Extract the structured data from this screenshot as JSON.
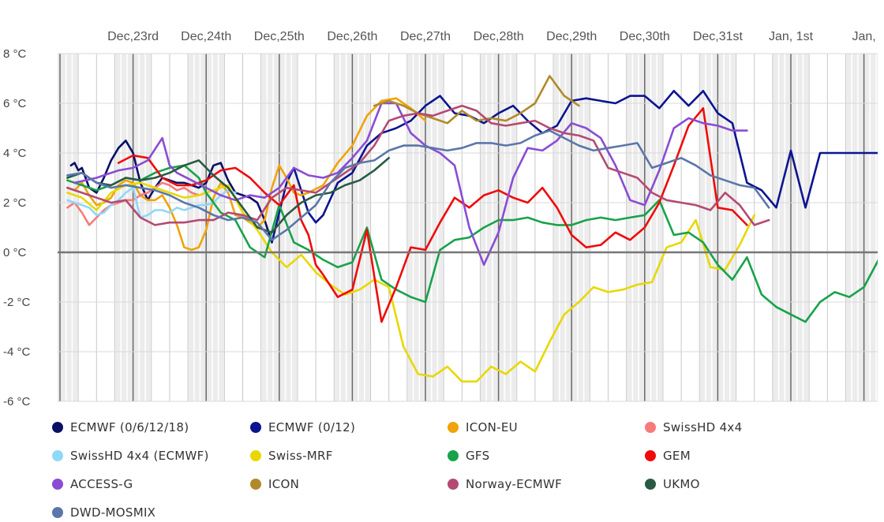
{
  "chart_data": {
    "type": "line",
    "title": "",
    "xlabel": "",
    "ylabel": "",
    "ylim": [
      -6,
      8
    ],
    "y_ticks": [
      -6,
      -4,
      -2,
      0,
      2,
      4,
      6,
      8
    ],
    "y_unit": "°C",
    "x_unit": "days from Dec 22 00:00",
    "xlim": [
      0,
      11.2
    ],
    "date_labels": [
      {
        "label": "Dec,23rd",
        "x": 1
      },
      {
        "label": "Dec,24th",
        "x": 2
      },
      {
        "label": "Dec,25th",
        "x": 3
      },
      {
        "label": "Dec,26th",
        "x": 4
      },
      {
        "label": "Dec,27th",
        "x": 5
      },
      {
        "label": "Dec,28th",
        "x": 6
      },
      {
        "label": "Dec,29th",
        "x": 7
      },
      {
        "label": "Dec,30th",
        "x": 8
      },
      {
        "label": "Dec,31st",
        "x": 9
      },
      {
        "label": "Jan, 1st",
        "x": 10
      },
      {
        "label": "Jan,",
        "x": 11
      }
    ],
    "grid": true,
    "legend_position": "bottom",
    "series": [
      {
        "name": "ECMWF (0/6/12/18)",
        "color": "#0a0f66",
        "x": [
          0.15,
          0.2,
          0.25,
          0.3,
          0.35,
          0.4,
          0.5,
          0.6,
          0.7,
          0.8,
          0.9,
          1.0,
          1.1,
          1.2,
          1.3,
          1.4,
          1.5,
          1.6,
          1.7,
          1.8,
          1.9,
          2.0,
          2.1,
          2.2,
          2.3,
          2.4,
          2.5,
          2.6,
          2.7,
          2.8,
          2.9
        ],
        "y": [
          3.5,
          3.6,
          3.3,
          3.4,
          3.0,
          2.6,
          2.4,
          3.0,
          3.7,
          4.2,
          4.5,
          4.0,
          2.8,
          2.1,
          2.6,
          3.0,
          2.9,
          2.8,
          2.8,
          2.7,
          2.6,
          2.8,
          3.5,
          3.6,
          2.9,
          2.4,
          2.3,
          2.2,
          2.0,
          1.3,
          0.4
        ]
      },
      {
        "name": "ECMWF (0/12)",
        "color": "#0b1490",
        "x": [
          2.9,
          3.0,
          3.1,
          3.2,
          3.3,
          3.4,
          3.5,
          3.6,
          3.8,
          4.0,
          4.2,
          4.4,
          4.6,
          4.8,
          5.0,
          5.2,
          5.4,
          5.6,
          5.8,
          6.0,
          6.2,
          6.4,
          6.6,
          6.8,
          7.0,
          7.2,
          7.4,
          7.6,
          7.8,
          8.0,
          8.2,
          8.4,
          8.6,
          8.8,
          9.0,
          9.2,
          9.4,
          9.6,
          9.8,
          10.0,
          10.2,
          10.4,
          10.6,
          10.8,
          11.0,
          11.2
        ],
        "y": [
          0.4,
          1.6,
          2.8,
          3.4,
          2.5,
          1.6,
          1.2,
          1.5,
          2.8,
          3.2,
          4.3,
          4.8,
          5.0,
          5.3,
          5.9,
          6.3,
          5.6,
          5.5,
          5.2,
          5.6,
          5.9,
          5.3,
          4.8,
          5.1,
          6.1,
          6.2,
          6.1,
          6.0,
          6.3,
          6.3,
          5.8,
          6.5,
          5.9,
          6.5,
          5.6,
          5.2,
          2.8,
          2.5,
          1.8,
          4.1,
          1.8,
          4.0,
          4.0,
          4.0,
          4.0,
          4.0
        ]
      },
      {
        "name": "ICON-EU",
        "color": "#f0a30a",
        "x": [
          0.1,
          0.2,
          0.3,
          0.4,
          0.5,
          0.6,
          0.7,
          0.8,
          0.9,
          1.0,
          1.1,
          1.2,
          1.3,
          1.4,
          1.5,
          1.6,
          1.7,
          1.8,
          1.9,
          2.0,
          2.1,
          2.2,
          2.3,
          2.4,
          2.5,
          2.6,
          2.7,
          2.8,
          2.9,
          3.0,
          3.1,
          3.2,
          3.3,
          3.4,
          3.6,
          3.8,
          4.0,
          4.2,
          4.4,
          4.6,
          4.8,
          5.0
        ],
        "y": [
          2.6,
          2.5,
          2.8,
          2.3,
          1.9,
          2.0,
          2.2,
          2.7,
          2.9,
          2.8,
          2.3,
          2.1,
          2.1,
          2.3,
          1.8,
          1.1,
          0.2,
          0.1,
          0.2,
          0.9,
          2.2,
          2.8,
          2.4,
          1.5,
          1.4,
          1.2,
          1.0,
          1.3,
          2.6,
          3.5,
          3.0,
          2.4,
          2.3,
          2.4,
          2.7,
          3.6,
          4.3,
          5.5,
          6.1,
          6.2,
          5.8,
          5.3
        ]
      },
      {
        "name": "SwissHD 4x4",
        "color": "#f87a7a",
        "x": [
          0.1,
          0.2,
          0.3,
          0.4,
          0.5,
          0.6,
          0.7,
          0.8,
          0.9,
          1.0,
          1.1,
          1.2,
          1.3,
          1.4,
          1.5,
          1.6,
          1.7,
          1.8,
          1.9,
          2.0
        ],
        "y": [
          1.8,
          2.0,
          1.6,
          1.1,
          1.4,
          1.7,
          1.9,
          2.0,
          2.1,
          2.1,
          2.3,
          2.4,
          2.6,
          2.8,
          2.7,
          2.5,
          2.6,
          2.4,
          2.3,
          2.4
        ]
      },
      {
        "name": "SwissHD 4x4 (ECMWF)",
        "color": "#8fd8f8",
        "x": [
          0.1,
          0.2,
          0.3,
          0.4,
          0.5,
          0.6,
          0.7,
          0.8,
          0.9,
          1.0,
          1.1,
          1.2,
          1.3,
          1.4,
          1.5,
          1.6,
          1.7,
          1.8,
          1.9,
          2.0,
          2.1,
          2.2,
          2.3,
          2.4
        ],
        "y": [
          2.1,
          2.0,
          1.9,
          1.8,
          1.5,
          1.6,
          1.9,
          2.1,
          2.4,
          2.6,
          1.4,
          1.5,
          1.7,
          1.7,
          1.6,
          1.8,
          1.7,
          1.8,
          1.9,
          1.9,
          2.0,
          2.3,
          2.5,
          2.4
        ]
      },
      {
        "name": "Swiss-MRF",
        "color": "#e8d800",
        "x": [
          0.1,
          0.3,
          0.5,
          0.7,
          0.9,
          1.1,
          1.3,
          1.5,
          1.7,
          1.9,
          2.1,
          2.3,
          2.5,
          2.7,
          2.9,
          3.1,
          3.3,
          3.5,
          3.7,
          3.9,
          4.1,
          4.3,
          4.5,
          4.7,
          4.9,
          5.1,
          5.3,
          5.5,
          5.7,
          5.9,
          6.1,
          6.3,
          6.5,
          6.7,
          6.9,
          7.1,
          7.3,
          7.5,
          7.7,
          7.9,
          8.1,
          8.3,
          8.5,
          8.7,
          8.9,
          9.1,
          9.3,
          9.5
        ],
        "y": [
          2.4,
          2.2,
          1.7,
          2.4,
          2.7,
          2.8,
          2.6,
          2.4,
          2.2,
          2.3,
          2.5,
          2.7,
          1.6,
          0.9,
          0.0,
          -0.6,
          -0.1,
          -0.8,
          -1.3,
          -1.7,
          -1.5,
          -1.1,
          -1.4,
          -3.8,
          -4.9,
          -5.0,
          -4.6,
          -5.2,
          -5.2,
          -4.6,
          -4.9,
          -4.4,
          -4.8,
          -3.6,
          -2.5,
          -2.0,
          -1.4,
          -1.6,
          -1.5,
          -1.3,
          -1.2,
          0.2,
          0.4,
          1.3,
          -0.6,
          -0.7,
          0.3,
          1.5
        ]
      },
      {
        "name": "GFS",
        "color": "#17a34a",
        "x": [
          0.1,
          0.3,
          0.5,
          0.7,
          0.9,
          1.1,
          1.3,
          1.5,
          1.7,
          1.9,
          2.0,
          2.2,
          2.4,
          2.6,
          2.8,
          3.0,
          3.2,
          3.4,
          3.6,
          3.8,
          4.0,
          4.2,
          4.4,
          4.6,
          4.8,
          5.0,
          5.2,
          5.4,
          5.6,
          5.8,
          6.0,
          6.2,
          6.4,
          6.6,
          6.8,
          7.0,
          7.2,
          7.4,
          7.6,
          7.8,
          8.0,
          8.2,
          8.4,
          8.6,
          8.8,
          9.0,
          9.2,
          9.4,
          9.6,
          9.8,
          10.0,
          10.2,
          10.4,
          10.6,
          10.8,
          11.0,
          11.2
        ],
        "y": [
          2.9,
          2.7,
          2.5,
          2.7,
          3.0,
          2.9,
          3.2,
          3.4,
          3.5,
          3.0,
          2.4,
          1.6,
          1.3,
          0.2,
          -0.2,
          1.9,
          0.4,
          0.1,
          -0.3,
          -0.6,
          -0.4,
          1.0,
          -1.1,
          -1.5,
          -1.8,
          -2.0,
          0.1,
          0.5,
          0.6,
          1.0,
          1.3,
          1.3,
          1.4,
          1.2,
          1.1,
          1.1,
          1.3,
          1.4,
          1.3,
          1.4,
          1.5,
          2.1,
          0.7,
          0.8,
          0.4,
          -0.5,
          -1.1,
          -0.2,
          -1.7,
          -2.2,
          -2.5,
          -2.8,
          -2.0,
          -1.6,
          -1.8,
          -1.4,
          -0.3
        ]
      },
      {
        "name": "GEM",
        "color": "#f00a0a",
        "x": [
          0.8,
          1.0,
          1.2,
          1.4,
          1.6,
          1.8,
          2.0,
          2.2,
          2.4,
          2.6,
          2.8,
          3.0,
          3.2,
          3.3,
          3.4,
          3.5,
          3.6,
          3.8,
          4.0,
          4.2,
          4.4,
          4.6,
          4.8,
          5.0,
          5.2,
          5.4,
          5.6,
          5.8,
          6.0,
          6.2,
          6.4,
          6.6,
          6.8,
          7.0,
          7.2,
          7.4,
          7.6,
          7.8,
          8.0,
          8.2,
          8.4,
          8.6,
          8.8,
          9.0,
          9.2,
          9.4
        ],
        "y": [
          3.6,
          3.9,
          3.8,
          3.0,
          2.7,
          2.7,
          2.9,
          3.3,
          3.4,
          3.0,
          2.4,
          1.9,
          2.7,
          1.3,
          0.7,
          -0.5,
          -0.9,
          -1.8,
          -1.5,
          0.9,
          -2.8,
          -1.4,
          0.2,
          0.1,
          1.2,
          2.2,
          1.8,
          2.3,
          2.5,
          2.2,
          2.0,
          2.6,
          1.8,
          0.7,
          0.2,
          0.3,
          0.8,
          0.5,
          1.0,
          2.0,
          3.5,
          5.1,
          5.8,
          1.8,
          1.7,
          1.1
        ]
      },
      {
        "name": "ACCESS-G",
        "color": "#8a4cd4",
        "x": [
          0.2,
          0.5,
          0.8,
          1.0,
          1.2,
          1.4,
          1.5,
          1.6,
          1.8,
          2.0,
          2.2,
          2.4,
          2.6,
          2.8,
          3.0,
          3.2,
          3.4,
          3.6,
          3.8,
          4.0,
          4.2,
          4.4,
          4.6,
          4.8,
          5.0,
          5.2,
          5.4,
          5.6,
          5.8,
          6.0,
          6.2,
          6.4,
          6.6,
          6.8,
          7.0,
          7.2,
          7.4,
          7.6,
          7.8,
          8.0,
          8.2,
          8.4,
          8.6,
          8.8,
          9.0,
          9.2,
          9.4
        ],
        "y": [
          2.8,
          3.0,
          3.3,
          3.4,
          3.7,
          4.6,
          3.5,
          3.2,
          2.9,
          2.6,
          2.3,
          2.1,
          2.3,
          2.2,
          2.6,
          3.4,
          3.1,
          3.0,
          3.2,
          3.8,
          4.5,
          6.0,
          6.0,
          4.8,
          4.3,
          4.0,
          3.5,
          1.0,
          -0.5,
          0.8,
          3.0,
          4.2,
          4.1,
          4.5,
          5.2,
          5.0,
          4.6,
          3.5,
          2.1,
          1.9,
          3.3,
          5.0,
          5.4,
          5.2,
          5.1,
          4.9,
          4.9
        ]
      },
      {
        "name": "ICON",
        "color": "#b08a2a",
        "x": [
          4.3,
          4.5,
          4.7,
          4.9,
          5.1,
          5.3,
          5.5,
          5.7,
          5.9,
          6.1,
          6.3,
          6.5,
          6.7,
          6.9,
          7.1
        ],
        "y": [
          5.9,
          6.1,
          5.9,
          5.6,
          5.4,
          5.2,
          5.7,
          5.3,
          5.4,
          5.3,
          5.6,
          6.0,
          7.1,
          6.3,
          5.9
        ]
      },
      {
        "name": "Norway-ECMWF",
        "color": "#b44a72",
        "x": [
          0.1,
          0.3,
          0.5,
          0.7,
          0.9,
          1.1,
          1.3,
          1.5,
          1.7,
          1.9,
          2.1,
          2.3,
          2.5,
          2.7,
          2.9,
          3.1,
          3.3,
          3.5,
          3.7,
          3.9,
          4.1,
          4.3,
          4.5,
          4.7,
          4.9,
          5.1,
          5.3,
          5.5,
          5.7,
          5.9,
          6.1,
          6.3,
          6.5,
          6.7,
          6.9,
          7.1,
          7.3,
          7.5,
          7.7,
          7.9,
          8.1,
          8.3,
          8.5,
          8.7,
          8.9,
          9.1,
          9.3,
          9.5,
          9.7
        ],
        "y": [
          2.6,
          2.4,
          2.2,
          2.0,
          2.1,
          1.4,
          1.1,
          1.2,
          1.2,
          1.3,
          1.3,
          1.6,
          1.5,
          1.3,
          2.2,
          2.6,
          2.5,
          2.4,
          2.8,
          3.2,
          3.6,
          4.3,
          5.3,
          5.5,
          5.6,
          5.5,
          5.7,
          5.9,
          5.7,
          5.2,
          5.1,
          5.2,
          5.3,
          5.0,
          4.8,
          4.7,
          4.5,
          3.4,
          3.2,
          3.0,
          2.4,
          2.1,
          2.0,
          1.9,
          1.7,
          2.4,
          1.9,
          1.1,
          1.3
        ]
      },
      {
        "name": "UKMO",
        "color": "#2a5a44",
        "x": [
          0.1,
          0.3,
          0.5,
          0.7,
          0.9,
          1.1,
          1.3,
          1.5,
          1.7,
          1.9,
          2.1,
          2.3,
          2.5,
          2.7,
          2.9,
          3.1,
          3.3,
          3.5,
          3.7,
          3.9,
          4.1,
          4.3,
          4.5
        ],
        "y": [
          3.0,
          3.2,
          2.8,
          2.7,
          3.0,
          2.9,
          3.0,
          3.2,
          3.5,
          3.7,
          3.1,
          2.6,
          1.8,
          1.0,
          0.8,
          1.5,
          2.0,
          2.3,
          2.4,
          2.7,
          2.9,
          3.3,
          3.8
        ]
      },
      {
        "name": "DWD-MOSMIX",
        "color": "#5a76aa",
        "x": [
          0.1,
          0.3,
          0.5,
          0.7,
          0.9,
          1.1,
          1.3,
          1.5,
          1.7,
          1.9,
          2.1,
          2.3,
          2.5,
          2.7,
          2.9,
          3.1,
          3.3,
          3.5,
          3.7,
          3.9,
          4.1,
          4.3,
          4.5,
          4.7,
          4.9,
          5.1,
          5.3,
          5.5,
          5.7,
          5.9,
          6.1,
          6.3,
          6.5,
          6.7,
          6.9,
          7.1,
          7.3,
          7.5,
          7.7,
          7.9,
          8.1,
          8.3,
          8.5,
          8.7,
          8.9,
          9.1,
          9.3,
          9.5,
          9.7
        ],
        "y": [
          3.1,
          3.2,
          2.8,
          2.6,
          2.7,
          2.6,
          2.5,
          2.3,
          2.0,
          1.8,
          1.5,
          1.3,
          1.4,
          1.2,
          0.5,
          0.9,
          1.4,
          1.9,
          2.8,
          3.4,
          3.6,
          3.7,
          4.1,
          4.3,
          4.3,
          4.2,
          4.1,
          4.2,
          4.4,
          4.4,
          4.3,
          4.4,
          4.7,
          4.9,
          4.6,
          4.3,
          4.1,
          4.2,
          4.3,
          4.4,
          3.4,
          3.6,
          3.8,
          3.5,
          3.1,
          2.9,
          2.7,
          2.6,
          1.8
        ]
      }
    ]
  },
  "legend": [
    {
      "label": "ECMWF (0/6/12/18)",
      "color": "#0a0f66"
    },
    {
      "label": "ECMWF (0/12)",
      "color": "#0b1490"
    },
    {
      "label": "ICON-EU",
      "color": "#f0a30a"
    },
    {
      "label": "SwissHD 4x4",
      "color": "#f87a7a"
    },
    {
      "label": "SwissHD 4x4 (ECMWF)",
      "color": "#8fd8f8"
    },
    {
      "label": "Swiss-MRF",
      "color": "#e8d800"
    },
    {
      "label": "GFS",
      "color": "#17a34a"
    },
    {
      "label": "GEM",
      "color": "#f00a0a"
    },
    {
      "label": "ACCESS-G",
      "color": "#8a4cd4"
    },
    {
      "label": "ICON",
      "color": "#b08a2a"
    },
    {
      "label": "Norway-ECMWF",
      "color": "#b44a72"
    },
    {
      "label": "UKMO",
      "color": "#2a5a44"
    },
    {
      "label": "DWD-MOSMIX",
      "color": "#5a76aa"
    }
  ]
}
